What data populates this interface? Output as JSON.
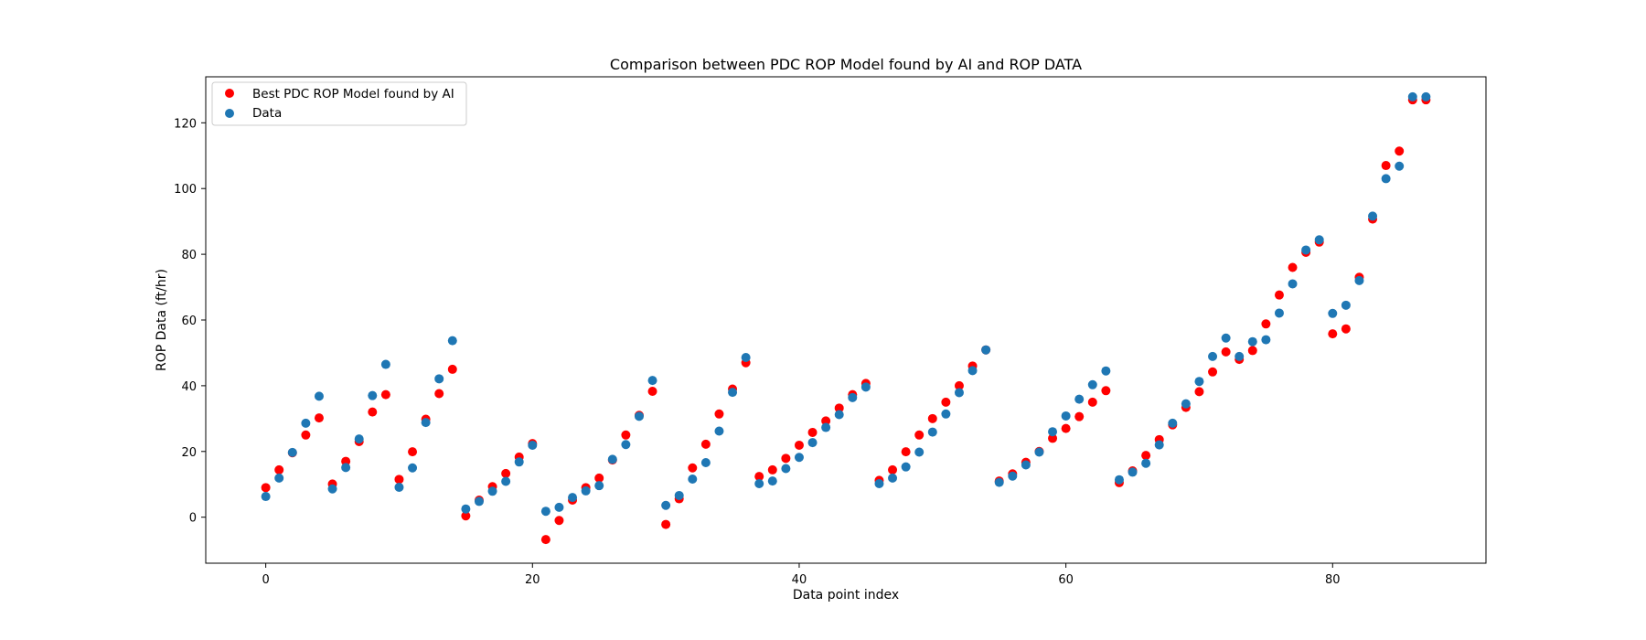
{
  "chart_data": {
    "type": "scatter",
    "title": "Comparison between PDC ROP Model found by AI and ROP DATA",
    "xlabel": "Data point index",
    "ylabel": "ROP Data (ft/hr)",
    "xlim": [
      -4.5,
      91.5
    ],
    "ylim": [
      -14,
      134
    ],
    "xticks": [
      0,
      20,
      40,
      60,
      80
    ],
    "yticks": [
      0,
      20,
      40,
      60,
      80,
      100,
      120
    ],
    "grid": false,
    "legend": "top-left",
    "series": [
      {
        "name": "Best PDC ROP Model found by AI",
        "color": "#ff0000",
        "x": [
          0,
          1,
          2,
          3,
          4,
          5,
          6,
          7,
          8,
          9,
          10,
          11,
          12,
          13,
          14,
          15,
          16,
          17,
          18,
          19,
          20,
          21,
          22,
          23,
          24,
          25,
          26,
          27,
          28,
          29,
          30,
          31,
          32,
          33,
          34,
          35,
          36,
          37,
          38,
          39,
          40,
          41,
          42,
          43,
          44,
          45,
          46,
          47,
          48,
          49,
          50,
          51,
          52,
          53,
          54,
          55,
          56,
          57,
          58,
          59,
          60,
          61,
          62,
          63,
          64,
          65,
          66,
          67,
          68,
          69,
          70,
          71,
          72,
          73,
          74,
          75,
          76,
          77,
          78,
          79,
          80,
          81,
          82,
          83,
          84,
          85,
          86,
          87
        ],
        "y": [
          9.0,
          14.4,
          19.6,
          25.0,
          30.2,
          10.1,
          17.0,
          23.0,
          32.0,
          37.3,
          11.5,
          19.9,
          29.8,
          37.6,
          45.0,
          0.4,
          5.2,
          9.3,
          13.3,
          18.3,
          22.4,
          -6.8,
          -1.0,
          5.2,
          9.0,
          11.9,
          17.4,
          25.0,
          31.0,
          38.3,
          -2.2,
          5.6,
          15.0,
          22.2,
          31.4,
          39.0,
          47.0,
          12.4,
          14.4,
          17.9,
          21.9,
          25.8,
          29.3,
          33.2,
          37.3,
          40.7,
          11.2,
          14.4,
          19.9,
          25.0,
          30.0,
          35.0,
          40.0,
          46.0,
          50.9,
          11.0,
          13.2,
          16.7,
          20.0,
          24.0,
          27.0,
          30.6,
          35.0,
          38.5,
          10.5,
          14.1,
          18.8,
          23.6,
          28.1,
          33.4,
          38.2,
          44.2,
          50.3,
          48.0,
          50.7,
          58.8,
          67.6,
          76.0,
          80.6,
          83.7,
          55.8,
          57.3,
          73.0,
          90.7,
          107.0,
          111.4,
          127.0,
          127.0
        ]
      },
      {
        "name": "Data",
        "color": "#1f77b4",
        "x": [
          0,
          1,
          2,
          3,
          4,
          5,
          6,
          7,
          8,
          9,
          10,
          11,
          12,
          13,
          14,
          15,
          16,
          17,
          18,
          19,
          20,
          21,
          22,
          23,
          24,
          25,
          26,
          27,
          28,
          29,
          30,
          31,
          32,
          33,
          34,
          35,
          36,
          37,
          38,
          39,
          40,
          41,
          42,
          43,
          44,
          45,
          46,
          47,
          48,
          49,
          50,
          51,
          52,
          53,
          54,
          55,
          56,
          57,
          58,
          59,
          60,
          61,
          62,
          63,
          64,
          65,
          66,
          67,
          68,
          69,
          70,
          71,
          72,
          73,
          74,
          75,
          76,
          77,
          78,
          79,
          80,
          81,
          82,
          83,
          84,
          85,
          86,
          87
        ],
        "y": [
          6.3,
          11.9,
          19.7,
          28.6,
          36.8,
          8.6,
          15.1,
          23.8,
          37.0,
          46.5,
          9.1,
          15.0,
          28.8,
          42.1,
          53.7,
          2.5,
          4.8,
          7.9,
          10.9,
          16.8,
          21.9,
          1.8,
          3.0,
          6.0,
          8.0,
          9.6,
          17.6,
          22.1,
          30.7,
          41.6,
          3.6,
          6.6,
          11.6,
          16.6,
          26.2,
          38.0,
          48.6,
          10.2,
          11.0,
          14.8,
          18.2,
          22.7,
          27.3,
          31.2,
          36.4,
          39.6,
          10.2,
          11.9,
          15.3,
          19.8,
          25.9,
          31.4,
          37.9,
          44.6,
          50.9,
          10.6,
          12.5,
          15.9,
          19.8,
          26.0,
          30.8,
          35.9,
          40.3,
          44.5,
          11.4,
          13.7,
          16.4,
          22.0,
          28.6,
          34.5,
          41.3,
          48.9,
          54.5,
          48.9,
          53.4,
          54.0,
          62.1,
          71.0,
          81.3,
          84.4,
          62.0,
          64.5,
          72.0,
          91.6,
          103.0,
          106.8,
          127.9,
          127.9
        ]
      }
    ]
  }
}
